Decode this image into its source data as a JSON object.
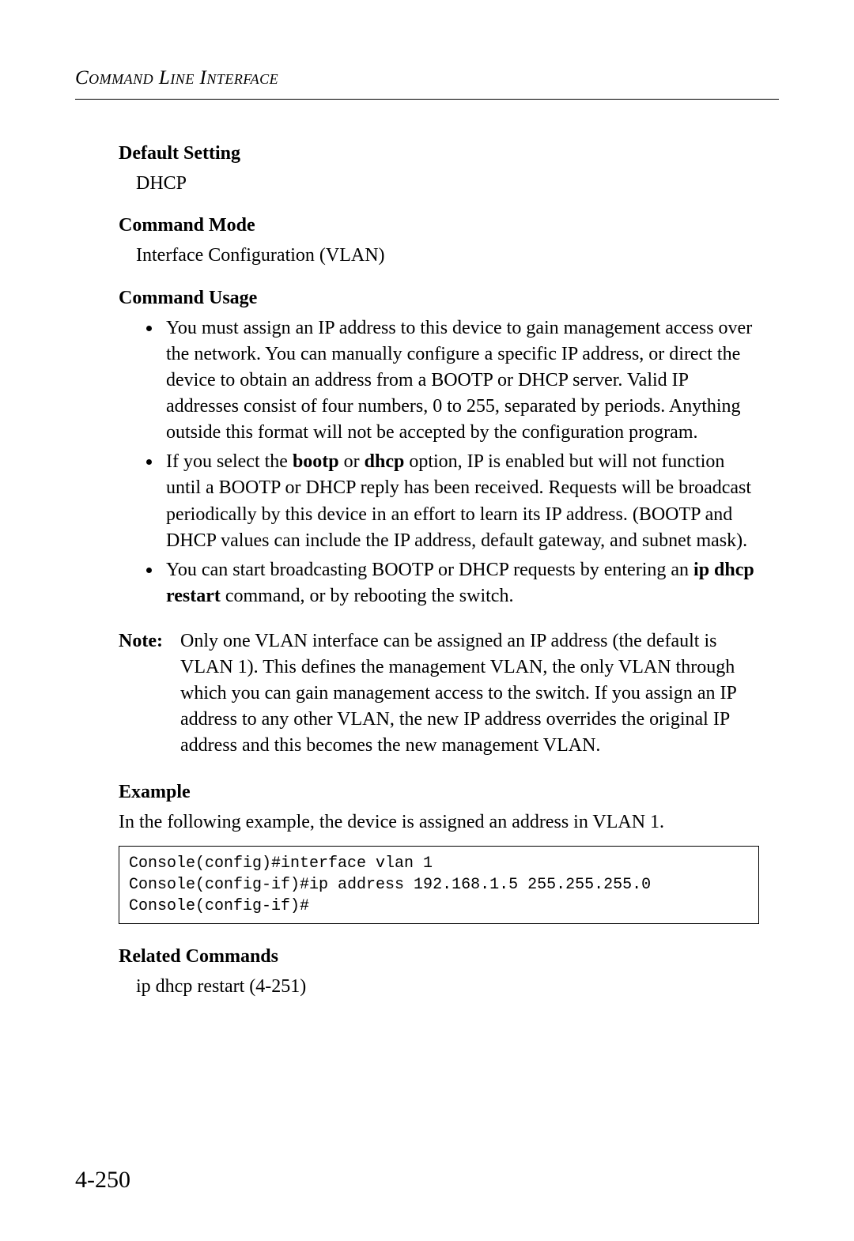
{
  "header": {
    "title": "Command Line Interface"
  },
  "sections": {
    "defaultSetting": {
      "heading": "Default Setting",
      "body": "DHCP"
    },
    "commandMode": {
      "heading": "Command Mode",
      "body": "Interface Configuration (VLAN)"
    },
    "commandUsage": {
      "heading": "Command Usage",
      "items": [
        {
          "pre": "You must assign an IP address to this device to gain management access over the network. You can manually configure a specific IP address, or direct the device to obtain an address from a BOOTP or DHCP server. Valid IP addresses consist of four numbers, 0 to 255, separated by periods. Anything outside this format will not be accepted by the configuration program."
        },
        {
          "pre": "If you select the ",
          "bold1": "bootp",
          "mid": " or ",
          "bold2": "dhcp",
          "post": " option, IP is enabled but will not function until a BOOTP or DHCP reply has been received. Requests will be broadcast periodically by this device in an effort to learn its IP address. (BOOTP and DHCP values can include the IP address, default gateway, and subnet mask)."
        },
        {
          "pre": "You can start broadcasting BOOTP or DHCP requests by entering an ",
          "bold1": "ip dhcp restart",
          "post": " command, or by rebooting the switch."
        }
      ]
    },
    "note": {
      "label": "Note:",
      "text": "Only one VLAN interface can be assigned an IP address (the default is VLAN 1). This defines the management VLAN, the only VLAN through which you can gain management access to the switch. If you assign an IP address to any other VLAN, the new IP address overrides the original IP address and this becomes the new management VLAN."
    },
    "example": {
      "heading": "Example",
      "intro": "In the following example, the device is assigned an address in VLAN 1.",
      "code": "Console(config)#interface vlan 1\nConsole(config-if)#ip address 192.168.1.5 255.255.255.0\nConsole(config-if)#"
    },
    "relatedCommands": {
      "heading": "Related Commands",
      "body": "ip dhcp restart (4-251)"
    }
  },
  "pageNumber": "4-250"
}
